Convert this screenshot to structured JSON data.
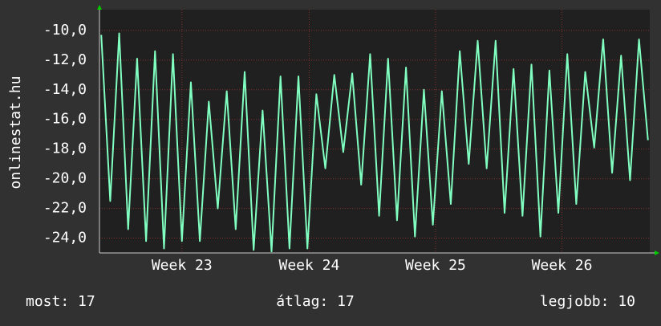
{
  "chart_data": {
    "type": "line",
    "y_label": "onlinestat.hu",
    "series": [
      {
        "name": "onlinestat.hu",
        "color": "#80ffc0",
        "values": [
          -10.3,
          -21.5,
          -10.2,
          -23.4,
          -11.9,
          -24.2,
          -11.4,
          -24.7,
          -11.6,
          -24.2,
          -13.5,
          -24.2,
          -14.8,
          -22.0,
          -14.1,
          -23.4,
          -12.8,
          -24.8,
          -15.4,
          -24.9,
          -13.1,
          -24.7,
          -13.1,
          -24.7,
          -14.3,
          -19.3,
          -13.0,
          -18.2,
          -12.9,
          -20.4,
          -11.6,
          -22.5,
          -11.9,
          -22.8,
          -12.5,
          -23.9,
          -14.0,
          -23.1,
          -14.1,
          -21.7,
          -11.4,
          -19.0,
          -10.7,
          -19.3,
          -10.7,
          -22.3,
          -12.6,
          -22.5,
          -12.3,
          -23.9,
          -12.7,
          -22.3,
          -11.6,
          -21.7,
          -12.8,
          -17.9,
          -10.6,
          -19.6,
          -11.7,
          -20.1,
          -10.6,
          -17.4
        ]
      }
    ],
    "xlim": [
      -0.2,
      61.2
    ],
    "xticks": [
      {
        "value": 9.0,
        "label": "Week 23"
      },
      {
        "value": 23.2,
        "label": "Week 24"
      },
      {
        "value": 37.3,
        "label": "Week 25"
      },
      {
        "value": 51.4,
        "label": "Week 26"
      }
    ],
    "ylim": [
      -25.0,
      -8.6
    ],
    "yticks": [
      {
        "value": -10,
        "label": "-10,0"
      },
      {
        "value": -12,
        "label": "-12,0"
      },
      {
        "value": -14,
        "label": "-14,0"
      },
      {
        "value": -16,
        "label": "-16,0"
      },
      {
        "value": -18,
        "label": "-18,0"
      },
      {
        "value": -20,
        "label": "-20,0"
      },
      {
        "value": -22,
        "label": "-22,0"
      },
      {
        "value": -24,
        "label": "-24,0"
      }
    ],
    "grid": true,
    "footer": [
      "most: 17",
      "átlag: 17",
      "legjobb: 10"
    ]
  }
}
